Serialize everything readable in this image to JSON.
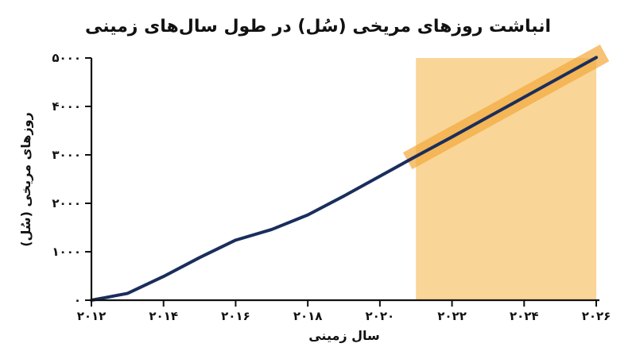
{
  "chart_data": {
    "type": "line",
    "title": "انباشت روزهای مریخی (سُل) در طول سال‌های زمینی",
    "xlabel": "سال زمینی",
    "ylabel": "روزهای مریخی (سُل)",
    "x_ticks": [
      2012,
      2014,
      2016,
      2018,
      2020,
      2022,
      2024,
      2026
    ],
    "x_tick_labels": [
      "۲۰۱۲",
      "۲۰۱۴",
      "۲۰۱۶",
      "۲۰۱۸",
      "۲۰۲۰",
      "۲۰۲۲",
      "۲۰۲۴",
      "۲۰۲۶"
    ],
    "y_ticks": [
      0,
      1000,
      2000,
      3000,
      4000,
      5000
    ],
    "y_tick_labels": [
      "۰",
      "۱۰۰۰",
      "۲۰۰۰",
      "۳۰۰۰",
      "۴۰۰۰",
      "۵۰۰۰"
    ],
    "xlim": [
      2012,
      2026
    ],
    "ylim": [
      0,
      5000
    ],
    "grid": false,
    "series": [
      {
        "x": [
          2012,
          2013,
          2014,
          2015,
          2016,
          2017,
          2018,
          2019,
          2020,
          2021,
          2022,
          2023,
          2024,
          2025,
          2026
        ],
        "y": [
          0,
          140,
          490,
          880,
          1240,
          1460,
          1760,
          2150,
          2560,
          2970,
          3370,
          3780,
          4190,
          4600,
          5010
        ],
        "color": "#1a2e5c"
      }
    ],
    "highlight_region": {
      "x_start": 2021,
      "x_end": 2026,
      "y_start": 0,
      "y_end": 5000,
      "color": "#f9d597"
    },
    "trend_band": {
      "x": [
        2021,
        2026
      ],
      "y": [
        2970,
        5010
      ],
      "color": "#f2a83a"
    }
  }
}
